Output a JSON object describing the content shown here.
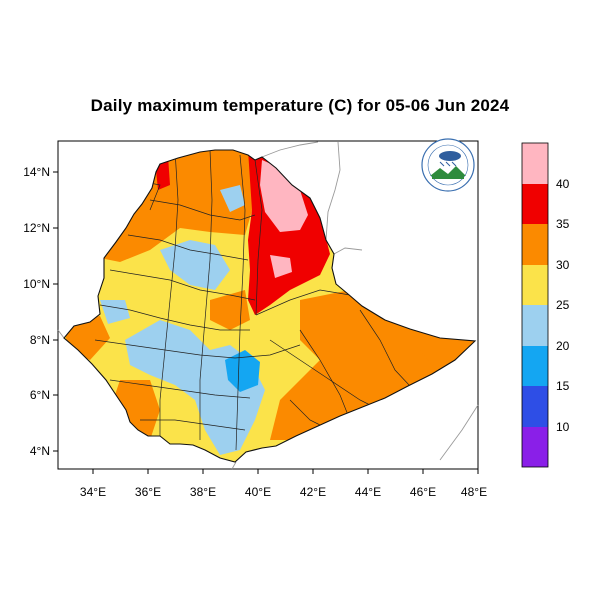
{
  "title": "Daily maximum temperature (C) for 05-06 Jun 2024",
  "map": {
    "lon_range": [
      33,
      48
    ],
    "lat_range": [
      3.2,
      15
    ],
    "x_ticks": [
      "34°E",
      "36°E",
      "38°E",
      "40°E",
      "42°E",
      "44°E",
      "46°E",
      "48°E"
    ],
    "y_ticks": [
      "4°N",
      "6°N",
      "8°N",
      "10°N",
      "12°N",
      "14°N"
    ]
  },
  "legend": {
    "labels": [
      "10",
      "15",
      "20",
      "25",
      "30",
      "35",
      "40"
    ],
    "colors": [
      "#8a1fe8",
      "#2e4ee6",
      "#14a6f2",
      "#9dd0ef",
      "#fbe34a",
      "#fb8a00",
      "#f00000",
      "#ffb6c1"
    ]
  },
  "logo": {
    "icon": "meteorology-agency-logo-icon"
  }
}
